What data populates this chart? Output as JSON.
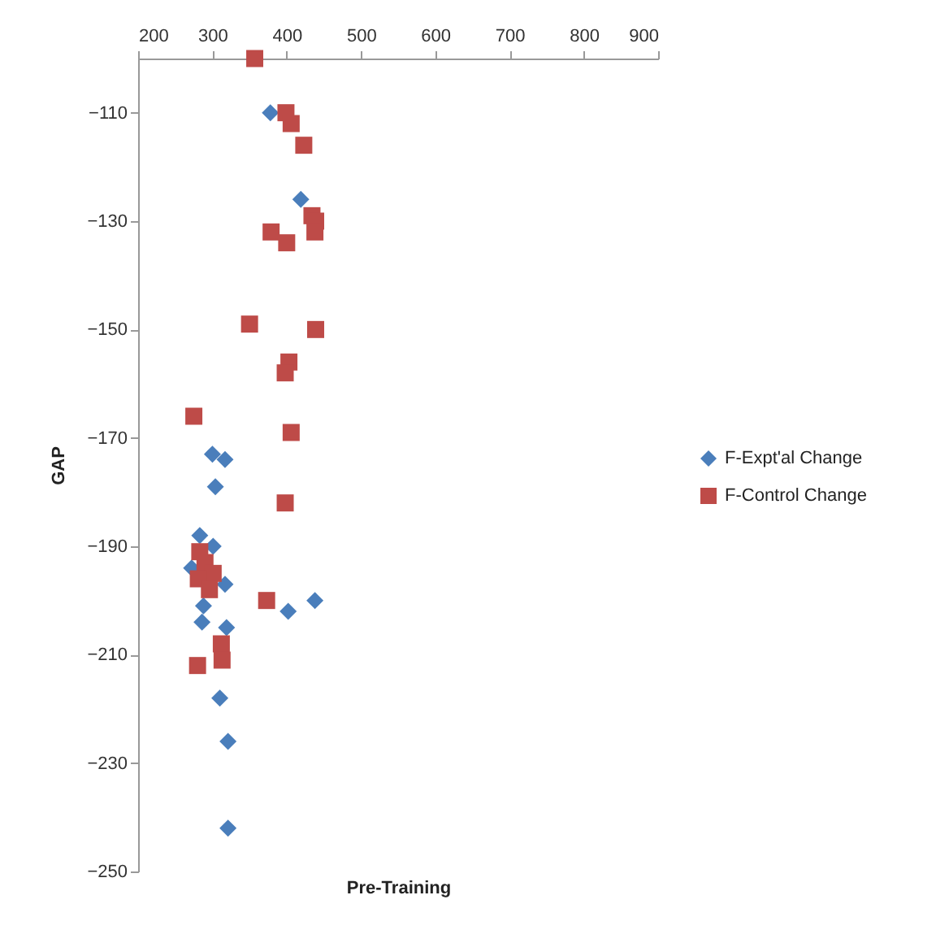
{
  "chart_data": {
    "type": "scatter",
    "xlabel": "Pre-Training",
    "ylabel": "GAP",
    "xlim": [
      200,
      900
    ],
    "xticks": [
      200,
      300,
      400,
      500,
      600,
      700,
      800,
      900
    ],
    "ylim": [
      -250,
      -100
    ],
    "yticks": [
      -110,
      -130,
      -150,
      -170,
      -190,
      -210,
      -230,
      -250
    ],
    "grid": false,
    "legend": "right",
    "series": [
      {
        "name": "F-Expt'al Change",
        "color": "#4a7ebb",
        "marker": "diamond",
        "x": [
          378,
          419,
          300,
          317,
          304,
          283,
          301,
          272,
          317,
          438,
          402,
          288,
          286,
          319,
          310,
          321,
          321
        ],
        "values": [
          -110,
          -126,
          -173,
          -174,
          -179,
          -188,
          -190,
          -194,
          -197,
          -200,
          -202,
          -201,
          -204,
          -205,
          -218,
          -226,
          -242
        ]
      },
      {
        "name": "F-Control Change",
        "color": "#be4b48",
        "marker": "square",
        "x": [
          357,
          399,
          406,
          423,
          434,
          439,
          438,
          379,
          400,
          350,
          439,
          403,
          398,
          275,
          406,
          398,
          283,
          290,
          301,
          281,
          296,
          373,
          312,
          313,
          280
        ],
        "values": [
          -100,
          -110,
          -112,
          -116,
          -129,
          -130,
          -132,
          -132,
          -134,
          -149,
          -150,
          -156,
          -158,
          -166,
          -169,
          -182,
          -191,
          -193,
          -195,
          -196,
          -198,
          -200,
          -208,
          -211,
          -212
        ]
      }
    ]
  }
}
